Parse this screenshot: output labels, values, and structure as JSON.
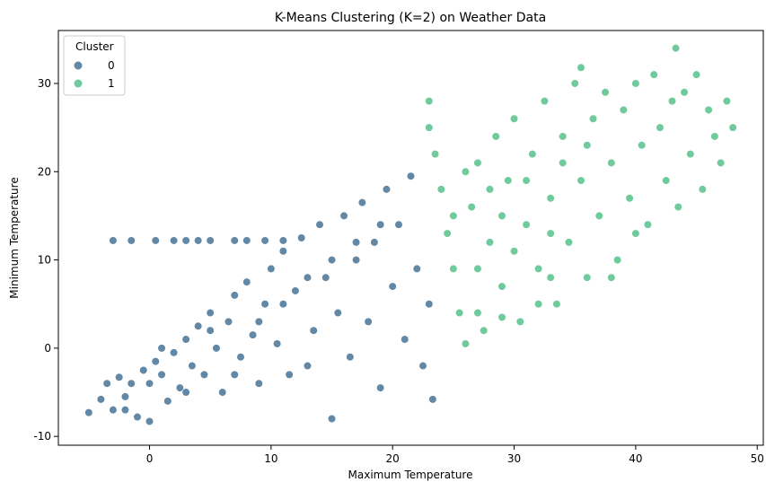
{
  "chart_data": {
    "type": "scatter",
    "title": "K-Means Clustering (K=2) on Weather Data",
    "xlabel": "Maximum Temperature",
    "ylabel": "Minimum Temperature",
    "xlim": [
      -7.5,
      50.5
    ],
    "ylim": [
      -11,
      36
    ],
    "x_ticks": [
      0,
      10,
      20,
      30,
      40,
      50
    ],
    "y_ticks": [
      -10,
      0,
      10,
      20,
      30
    ],
    "grid": false,
    "legend": {
      "title": "Cluster",
      "placement": "top-left",
      "entries": [
        "0",
        "1"
      ]
    },
    "series": [
      {
        "name": "0",
        "color": "#3b6a8f",
        "points": [
          [
            -5,
            -7.3
          ],
          [
            -4,
            -5.8
          ],
          [
            -3,
            -7
          ],
          [
            -2.5,
            -3.3
          ],
          [
            -2,
            -5.5
          ],
          [
            -1.5,
            -4
          ],
          [
            -1,
            -7.8
          ],
          [
            -0.5,
            -2.5
          ],
          [
            0,
            -8.3
          ],
          [
            0,
            -4
          ],
          [
            0.5,
            -1.5
          ],
          [
            1,
            -3
          ],
          [
            1.5,
            -6
          ],
          [
            2,
            -0.5
          ],
          [
            2.5,
            -4.5
          ],
          [
            3,
            1
          ],
          [
            3.5,
            -2
          ],
          [
            4,
            2.5
          ],
          [
            4.5,
            -3
          ],
          [
            5,
            4
          ],
          [
            5.5,
            0
          ],
          [
            6,
            -5
          ],
          [
            6.5,
            3
          ],
          [
            7,
            6
          ],
          [
            7.5,
            -1
          ],
          [
            8,
            7.5
          ],
          [
            8.5,
            1.5
          ],
          [
            9,
            -4
          ],
          [
            9.5,
            5
          ],
          [
            10,
            9
          ],
          [
            10.5,
            0.5
          ],
          [
            11,
            11
          ],
          [
            11.5,
            -3
          ],
          [
            12,
            6.5
          ],
          [
            12.5,
            12.5
          ],
          [
            13,
            -2
          ],
          [
            13.5,
            2
          ],
          [
            14,
            14
          ],
          [
            14.5,
            8
          ],
          [
            15,
            -8
          ],
          [
            15.5,
            4
          ],
          [
            16,
            15
          ],
          [
            16.5,
            -1
          ],
          [
            17,
            10
          ],
          [
            17.5,
            16.5
          ],
          [
            18,
            3
          ],
          [
            18.5,
            12
          ],
          [
            19,
            -4.5
          ],
          [
            19.5,
            18
          ],
          [
            20,
            7
          ],
          [
            20.5,
            14
          ],
          [
            21,
            1
          ],
          [
            21.5,
            19.5
          ],
          [
            22,
            9
          ],
          [
            22.5,
            -2
          ],
          [
            23,
            5
          ],
          [
            23.3,
            -5.8
          ],
          [
            2,
            12.2
          ],
          [
            3,
            12.2
          ],
          [
            4,
            12.2
          ],
          [
            5,
            12.2
          ],
          [
            7,
            12.2
          ],
          [
            8,
            12.2
          ],
          [
            9.5,
            12.2
          ],
          [
            0.5,
            12.2
          ],
          [
            -3,
            12.2
          ],
          [
            -1.5,
            12.2
          ],
          [
            11,
            12.2
          ],
          [
            -2,
            -7
          ],
          [
            -3.5,
            -4
          ],
          [
            1,
            0
          ],
          [
            3,
            -5
          ],
          [
            5,
            2
          ],
          [
            7,
            -3
          ],
          [
            9,
            3
          ],
          [
            11,
            5
          ],
          [
            13,
            8
          ],
          [
            15,
            10
          ],
          [
            17,
            12
          ],
          [
            19,
            14
          ]
        ]
      },
      {
        "name": "1",
        "color": "#4bbd83",
        "points": [
          [
            23,
            28
          ],
          [
            23,
            25
          ],
          [
            23.5,
            22
          ],
          [
            24,
            18
          ],
          [
            24.5,
            13
          ],
          [
            25,
            9
          ],
          [
            25.5,
            4
          ],
          [
            26,
            0.5
          ],
          [
            26.5,
            16
          ],
          [
            27,
            21
          ],
          [
            27.5,
            2
          ],
          [
            28,
            12
          ],
          [
            28.5,
            24
          ],
          [
            29,
            7
          ],
          [
            29.5,
            19
          ],
          [
            30,
            26
          ],
          [
            30.5,
            3
          ],
          [
            31,
            14
          ],
          [
            31.5,
            22
          ],
          [
            32,
            9
          ],
          [
            32.5,
            28
          ],
          [
            33,
            17
          ],
          [
            33.5,
            5
          ],
          [
            34,
            24
          ],
          [
            34.5,
            12
          ],
          [
            35,
            30
          ],
          [
            35.5,
            19
          ],
          [
            36,
            8
          ],
          [
            36.5,
            26
          ],
          [
            37,
            15
          ],
          [
            37.5,
            29
          ],
          [
            38,
            21
          ],
          [
            38.5,
            10
          ],
          [
            39,
            27
          ],
          [
            39.5,
            17
          ],
          [
            40,
            30
          ],
          [
            40.5,
            23
          ],
          [
            41,
            14
          ],
          [
            41.5,
            31
          ],
          [
            42,
            25
          ],
          [
            42.5,
            19
          ],
          [
            43,
            28
          ],
          [
            43.3,
            34
          ],
          [
            43.5,
            16
          ],
          [
            44,
            29
          ],
          [
            44.5,
            22
          ],
          [
            45,
            31
          ],
          [
            45.5,
            18
          ],
          [
            46,
            27
          ],
          [
            46.5,
            24
          ],
          [
            47,
            21
          ],
          [
            47.5,
            28
          ],
          [
            48,
            25
          ],
          [
            35.5,
            31.8
          ],
          [
            27,
            4
          ],
          [
            29,
            3.5
          ],
          [
            32,
            5
          ],
          [
            33,
            8
          ],
          [
            38,
            8
          ],
          [
            40,
            13
          ],
          [
            31,
            19
          ],
          [
            34,
            21
          ],
          [
            36,
            23
          ],
          [
            29,
            15
          ],
          [
            27,
            9
          ],
          [
            25,
            15
          ],
          [
            26,
            20
          ],
          [
            28,
            18
          ],
          [
            30,
            11
          ],
          [
            33,
            13
          ]
        ]
      }
    ]
  }
}
